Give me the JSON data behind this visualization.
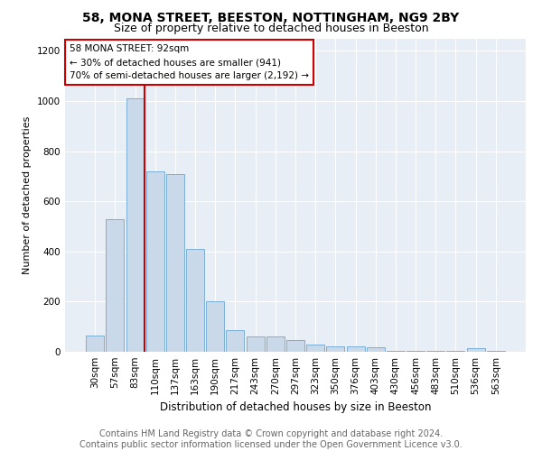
{
  "title1": "58, MONA STREET, BEESTON, NOTTINGHAM, NG9 2BY",
  "title2": "Size of property relative to detached houses in Beeston",
  "xlabel": "Distribution of detached houses by size in Beeston",
  "ylabel": "Number of detached properties",
  "bar_labels": [
    "30sqm",
    "57sqm",
    "83sqm",
    "110sqm",
    "137sqm",
    "163sqm",
    "190sqm",
    "217sqm",
    "243sqm",
    "270sqm",
    "297sqm",
    "323sqm",
    "350sqm",
    "376sqm",
    "403sqm",
    "430sqm",
    "456sqm",
    "483sqm",
    "510sqm",
    "536sqm",
    "563sqm"
  ],
  "bar_values": [
    65,
    530,
    1010,
    720,
    710,
    410,
    200,
    85,
    62,
    62,
    45,
    30,
    20,
    20,
    18,
    5,
    5,
    5,
    5,
    15,
    5
  ],
  "bar_color": "#c9d9ea",
  "bar_edge_color": "#7bafd4",
  "vline_color": "#cc0000",
  "vline_x_index": 2,
  "annotation_text": "58 MONA STREET: 92sqm\n← 30% of detached houses are smaller (941)\n70% of semi-detached houses are larger (2,192) →",
  "annotation_box_color": "#ffffff",
  "annotation_box_edge": "#cc0000",
  "footer_text": "Contains HM Land Registry data © Crown copyright and database right 2024.\nContains public sector information licensed under the Open Government Licence v3.0.",
  "bg_color": "#e8eef5",
  "ylim": [
    0,
    1250
  ],
  "yticks": [
    0,
    200,
    400,
    600,
    800,
    1000,
    1200
  ],
  "title_fontsize": 10,
  "subtitle_fontsize": 9,
  "footer_fontsize": 7,
  "ylabel_fontsize": 8,
  "xlabel_fontsize": 8.5,
  "tick_fontsize": 7.5,
  "annot_fontsize": 7.5
}
